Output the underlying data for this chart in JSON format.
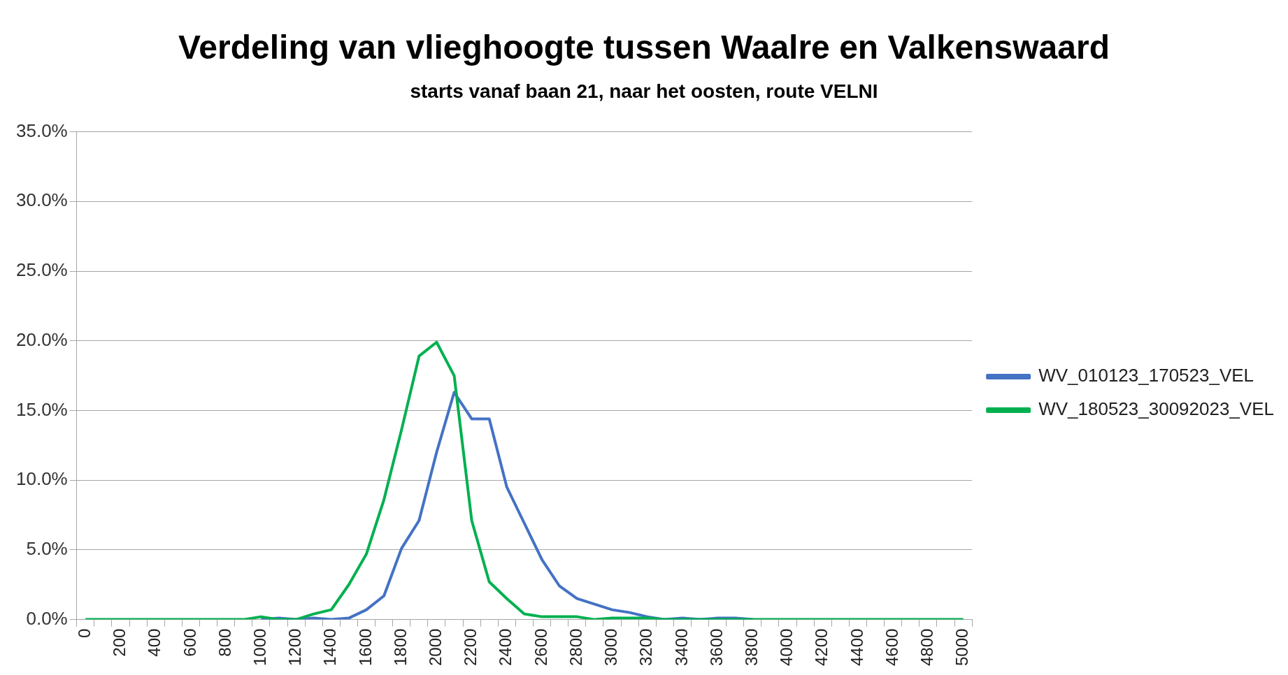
{
  "chart_data": {
    "type": "line",
    "title": "Verdeling van vlieghoogte tussen Waalre en Valkenswaard",
    "subtitle": "starts vanaf baan 21, naar het oosten, route VELNI",
    "categories": [
      "0",
      null,
      "200",
      null,
      "400",
      null,
      "600",
      null,
      "800",
      null,
      "1000",
      null,
      "1200",
      null,
      "1400",
      null,
      "1600",
      null,
      "1800",
      null,
      "2000",
      null,
      "2200",
      null,
      "2400",
      null,
      "2600",
      null,
      "2800",
      null,
      "3000",
      null,
      "3200",
      null,
      "3400",
      null,
      "3600",
      null,
      "3800",
      null,
      "4000",
      null,
      "4200",
      null,
      "4400",
      null,
      "4600",
      null,
      "4800",
      null,
      "5000"
    ],
    "series": [
      {
        "name": "WV_010123_170523_VEL",
        "color": "#4472c4",
        "values": [
          null,
          null,
          null,
          null,
          null,
          null,
          null,
          null,
          null,
          null,
          0,
          0.1,
          0,
          0.1,
          0,
          0.1,
          0.7,
          1.7,
          5.1,
          7.1,
          12.0,
          16.3,
          14.4,
          14.4,
          9.5,
          6.9,
          4.3,
          2.4,
          1.5,
          1.1,
          0.7,
          0.5,
          0.2,
          0,
          0.1,
          0,
          0.1,
          0.1,
          0,
          null,
          null,
          null,
          null,
          null,
          null,
          null,
          null,
          null,
          null,
          null,
          null
        ]
      },
      {
        "name": "WV_180523_30092023_VEL",
        "color": "#00b050",
        "values": [
          0,
          0,
          0,
          0,
          0,
          0,
          0,
          0,
          0,
          0,
          0.2,
          0,
          0,
          0.4,
          0.7,
          2.5,
          4.7,
          8.6,
          13.6,
          18.9,
          19.9,
          17.5,
          7.1,
          2.7,
          1.5,
          0.4,
          0.2,
          0.2,
          0.2,
          0,
          0.1,
          0.1,
          0.1,
          0,
          0,
          0,
          0,
          0,
          0,
          0,
          0,
          0,
          0,
          0,
          0,
          0,
          0,
          0,
          0,
          0,
          0
        ]
      }
    ],
    "ylim": [
      0,
      35
    ],
    "yticks": [
      {
        "value": 0,
        "label": "0.0%"
      },
      {
        "value": 5,
        "label": "5.0%"
      },
      {
        "value": 10,
        "label": "10.0%"
      },
      {
        "value": 15,
        "label": "15.0%"
      },
      {
        "value": 20,
        "label": "20.0%"
      },
      {
        "value": 25,
        "label": "25.0%"
      },
      {
        "value": 30,
        "label": "30.0%"
      },
      {
        "value": 35,
        "label": "35.0%"
      }
    ],
    "grid": "y",
    "legend": "right",
    "marker": "none",
    "line_style": "solid"
  }
}
